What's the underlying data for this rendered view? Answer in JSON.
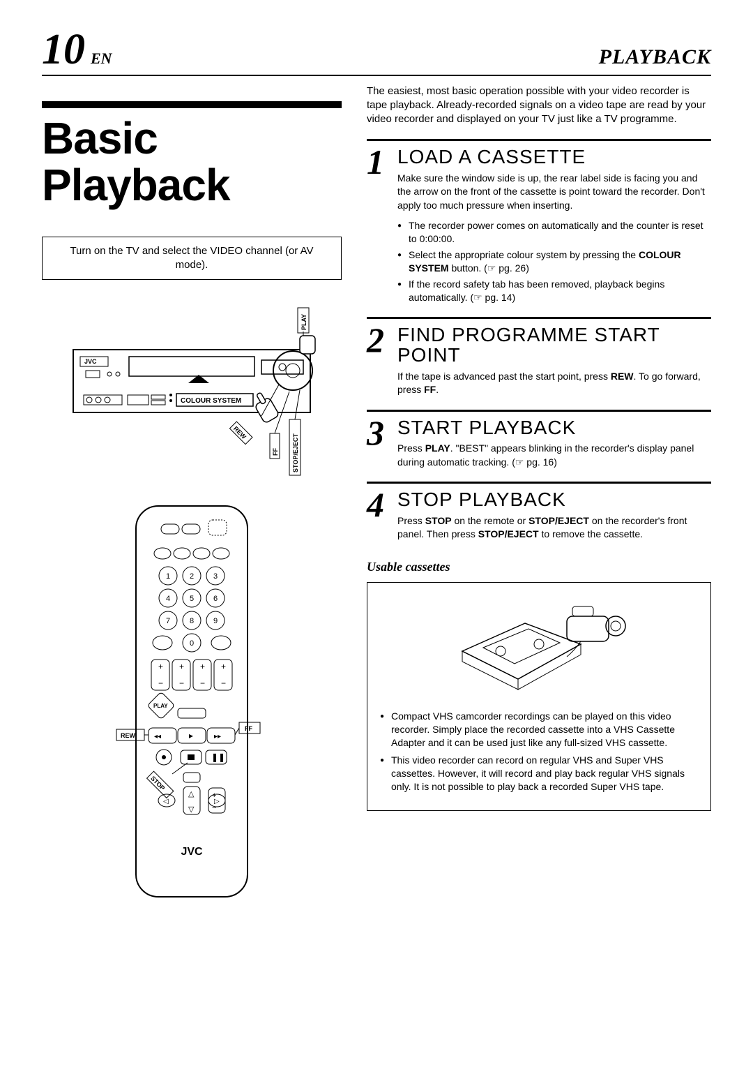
{
  "page": {
    "number": "10",
    "lang": "EN",
    "section": "PLAYBACK"
  },
  "title": "Basic Playback",
  "instruction_box": "Turn on the TV and select the VIDEO channel (or AV mode).",
  "vcr_labels": {
    "brand": "JVC",
    "colour_system": "COLOUR SYSTEM",
    "play": "PLAY",
    "stop_eject": "STOP/EJECT",
    "ff": "FF",
    "rew": "REW"
  },
  "remote_labels": {
    "play": "PLAY",
    "ff": "FF",
    "rew": "REW",
    "stop": "STOP",
    "brand": "JVC"
  },
  "intro": "The easiest, most basic operation possible with your video recorder is tape playback. Already-recorded signals on a video tape are read by your video recorder and displayed on your TV just like a TV programme.",
  "steps": [
    {
      "num": "1",
      "title": "LOAD A CASSETTE",
      "body_html": "Make sure the window side is up, the rear label side is facing you and the arrow on the front of the cassette is point toward the recorder. Don't apply too much pressure when inserting.",
      "bullets": [
        "The recorder power comes on automatically and the counter is reset to 0:00:00.",
        "Select the appropriate colour system by pressing the <strong>COLOUR SYSTEM</strong> button. (☞ pg. 26)",
        "If the record safety tab has been removed, playback begins automatically. (☞ pg. 14)"
      ]
    },
    {
      "num": "2",
      "title": "FIND PROGRAMME START POINT",
      "body_html": "If the tape is advanced past the start point, press <strong>REW</strong>. To go forward, press <strong>FF</strong>.",
      "bullets": []
    },
    {
      "num": "3",
      "title": "START PLAYBACK",
      "body_html": "Press <strong>PLAY</strong>. \"BEST\" appears blinking in the recorder's display panel during automatic tracking. (☞ pg. 16)",
      "bullets": []
    },
    {
      "num": "4",
      "title": "STOP PLAYBACK",
      "body_html": "Press <strong>STOP</strong> on the remote or <strong>STOP/EJECT</strong> on the recorder's front panel. Then press <strong>STOP/EJECT</strong> to remove the cassette.",
      "bullets": []
    }
  ],
  "usable": {
    "title": "Usable cassettes",
    "bullets": [
      "Compact VHS camcorder recordings can be played on this video recorder. Simply place the recorded cassette into a VHS Cassette Adapter and it can be used just like any full-sized VHS cassette.",
      "This video recorder can record on regular VHS and Super VHS cassettes. However, it will record and play back regular VHS signals only. It is not possible to play back a recorded Super VHS tape."
    ]
  },
  "colors": {
    "text": "#000000",
    "bg": "#ffffff",
    "line": "#000000"
  }
}
